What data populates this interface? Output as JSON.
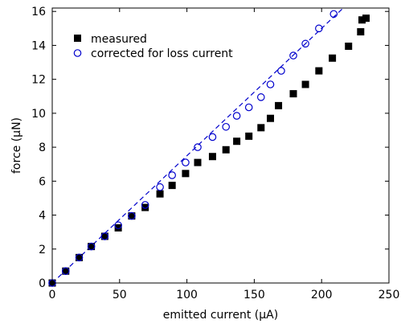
{
  "chart_data": {
    "type": "scatter",
    "xlabel": "emitted current  (µA)",
    "ylabel": "force  (µN)",
    "xlim": [
      0,
      250
    ],
    "ylim": [
      0,
      16.2
    ],
    "xticks": [
      0,
      50,
      100,
      150,
      200,
      250
    ],
    "yticks": [
      0,
      2,
      4,
      6,
      8,
      10,
      12,
      14,
      16
    ],
    "grid": false,
    "legend_position": "top-left",
    "series": [
      {
        "name": "measured",
        "marker": "filled-square",
        "color": "#000000",
        "x": [
          0,
          10,
          20,
          29,
          39,
          49,
          59,
          69,
          80,
          89,
          99,
          108,
          119,
          129,
          137,
          146,
          155,
          162,
          168,
          179,
          188,
          198,
          208,
          220,
          229,
          230,
          233
        ],
        "y": [
          0.0,
          0.7,
          1.5,
          2.15,
          2.75,
          3.25,
          3.95,
          4.45,
          5.25,
          5.75,
          6.45,
          7.1,
          7.45,
          7.85,
          8.35,
          8.65,
          9.15,
          9.7,
          10.45,
          11.15,
          11.7,
          12.5,
          13.25,
          13.95,
          14.8,
          15.5,
          15.6
        ]
      },
      {
        "name": "corrected for loss current",
        "marker": "open-circle",
        "color": "#0000cc",
        "x": [
          0,
          10,
          20,
          29,
          39,
          49,
          59,
          69,
          80,
          89,
          99,
          108,
          119,
          129,
          137,
          146,
          155,
          162,
          170,
          179,
          188,
          198,
          209
        ],
        "y": [
          0.0,
          0.7,
          1.5,
          2.15,
          2.75,
          3.4,
          3.95,
          4.6,
          5.65,
          6.35,
          7.1,
          8.0,
          8.6,
          9.2,
          9.85,
          10.35,
          10.95,
          11.7,
          12.5,
          13.4,
          14.1,
          15.0,
          15.85
        ]
      }
    ],
    "fit_line": {
      "style": "dashed",
      "color": "#0000cc",
      "x": [
        0,
        216
      ],
      "y": [
        0,
        16.2
      ]
    }
  }
}
